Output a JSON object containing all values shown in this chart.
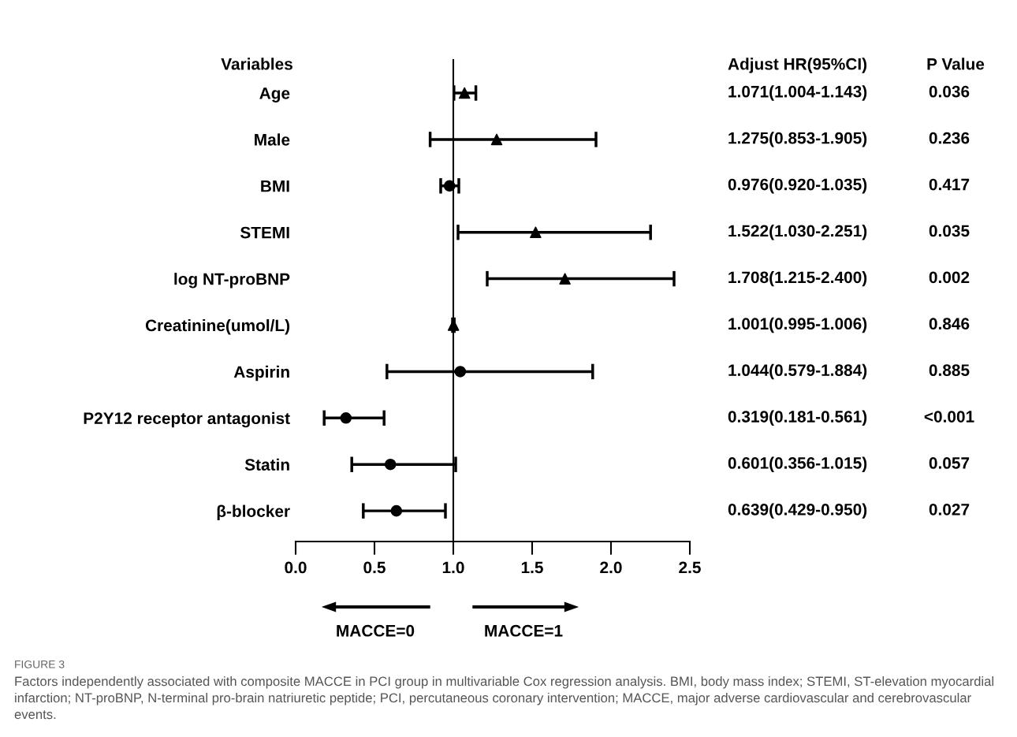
{
  "chart_data": {
    "type": "scatter",
    "orientation": "horizontal",
    "categories": [
      "Age",
      "Male",
      "BMI",
      "STEMI",
      "log NT-proBNP",
      "Creatinine(umol/L)",
      "Aspirin",
      "P2Y12 receptor antagonist",
      "Statin",
      "β-blocker"
    ],
    "series": [
      {
        "color": "#000000",
        "marker": "triangle",
        "values": [
          1.071,
          1.275,
          null,
          1.522,
          1.708,
          1.001,
          null,
          null,
          null,
          null
        ],
        "errors": [
          [
            1.004,
            1.143
          ],
          [
            0.853,
            1.905
          ],
          null,
          [
            1.03,
            2.251
          ],
          [
            1.215,
            2.4
          ],
          [
            0.995,
            1.006
          ],
          null,
          null,
          null,
          null
        ]
      },
      {
        "color": "#000000",
        "marker": "circle",
        "values": [
          null,
          null,
          0.976,
          null,
          null,
          null,
          1.044,
          0.319,
          0.601,
          0.639
        ],
        "errors": [
          null,
          null,
          [
            0.92,
            1.035
          ],
          null,
          null,
          null,
          [
            0.579,
            1.884
          ],
          [
            0.181,
            0.561
          ],
          [
            0.356,
            1.015
          ],
          [
            0.429,
            0.95
          ]
        ]
      }
    ],
    "value_labels": [
      "1.071(1.004-1.143)",
      "1.275(0.853-1.905)",
      "0.976(0.920-1.035)",
      "1.522(1.030-2.251)",
      "1.708(1.215-2.400)",
      "1.001(0.995-1.006)",
      "1.044(0.579-1.884)",
      "0.319(0.181-0.561)",
      "0.601(0.356-1.015)",
      "0.639(0.429-0.950)"
    ],
    "xlim": [
      0,
      2.5
    ],
    "xticks": [
      {
        "value": 0,
        "label": "0.0"
      },
      {
        "value": 0.5,
        "label": "0.5"
      },
      {
        "value": 1,
        "label": "1.0"
      },
      {
        "value": 1.5,
        "label": "1.5"
      },
      {
        "value": 2,
        "label": "2.0"
      },
      {
        "value": 2.5,
        "label": "2.5"
      }
    ],
    "ref_lines": [
      {
        "axis": "x",
        "value": 1,
        "color": "#000000"
      }
    ],
    "grid": false,
    "legend": false,
    "annotations": [
      "Variables",
      "Adjust HR(95%CI)",
      "P Value",
      "0.036",
      "0.236",
      "0.417",
      "0.035",
      "0.002",
      "0.846",
      "0.885",
      "<0.001",
      "0.057",
      "0.027",
      "MACCE=0",
      "MACCE=1",
      "FIGURE 3",
      "Factors independently associated with composite MACCE in PCI group in multivariable Cox regression analysis. BMI, body mass index; STEMI, ST-elevation myocardial infarction; NT-proBNP, N-terminal pro-brain natriuretic peptide; PCI, percutaneous coronary intervention; MACCE, major adverse cardiovascular and cerebrovascular events."
    ]
  }
}
